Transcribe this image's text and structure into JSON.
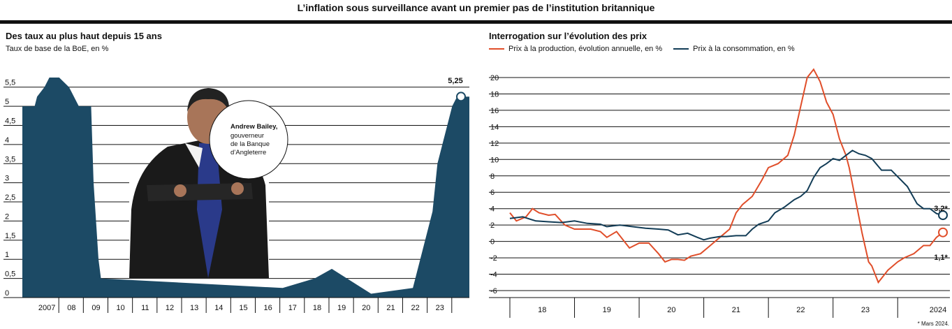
{
  "title": "L’inflation sous surveillance avant un premier pas de l’institution britannique",
  "left": {
    "title": "Des taux au plus haut depuis 15 ans",
    "subtitle": "Taux de base de la BoE, en %",
    "last_label": "5,25",
    "photo_caption_name": "Andrew Bailey,",
    "photo_caption_role": [
      "gouverneur",
      "de la Banque",
      "d’Angleterre"
    ],
    "photo_icon": "person-photo-icon"
  },
  "right": {
    "title": "Interrogation sur l’évolution des prix",
    "cons_label": "3,2*",
    "prod_label": "1,1*",
    "footnote": "* Mars 2024."
  },
  "colors": {
    "bar": "#1c4a65",
    "production": "#e04e2a",
    "consommation": "#123c56"
  },
  "chart_data": [
    {
      "type": "area",
      "title": "Des taux au plus haut depuis 15 ans",
      "ylabel": "Taux de base de la BoE, en %",
      "ylim": [
        0,
        5.75
      ],
      "yticks": [
        "0",
        "0,5",
        "1",
        "1,5",
        "2",
        "2,5",
        "3",
        "3,5",
        "4",
        "4,5",
        "5",
        "5,5"
      ],
      "xticks": [
        "2007",
        "08",
        "09",
        "10",
        "11",
        "12",
        "13",
        "14",
        "15",
        "16",
        "17",
        "18",
        "19",
        "20",
        "21",
        "22",
        "23"
      ],
      "x": [
        2006.0,
        2006.5,
        2006.6,
        2006.9,
        2007.1,
        2007.5,
        2007.9,
        2008.3,
        2008.8,
        2008.9,
        2009.1,
        2009.2,
        2016.6,
        2017.9,
        2018.6,
        2020.2,
        2021.9,
        2022.1,
        2022.3,
        2022.5,
        2022.7,
        2022.9,
        2023.1,
        2023.3,
        2023.5,
        2023.7,
        2024.2
      ],
      "values": [
        5.0,
        5.0,
        5.25,
        5.5,
        5.75,
        5.75,
        5.5,
        5.0,
        5.0,
        3.0,
        1.0,
        0.5,
        0.25,
        0.5,
        0.75,
        0.1,
        0.25,
        0.75,
        1.25,
        1.75,
        2.25,
        3.5,
        4.0,
        4.5,
        5.0,
        5.25,
        5.25
      ],
      "last_value": 5.25
    },
    {
      "type": "line",
      "title": "Interrogation sur l’évolution des prix",
      "ylim": [
        -6,
        21
      ],
      "yticks": [
        "20",
        "18",
        "16",
        "14",
        "12",
        "10",
        "8",
        "6",
        "4",
        "2",
        "0",
        "-2",
        "-4",
        "-6"
      ],
      "xticks": [
        "18",
        "19",
        "20",
        "21",
        "22",
        "23",
        "2024"
      ],
      "series": [
        {
          "name": "Prix à la production, évolution annuelle, en %",
          "x": [
            2017.5,
            2017.6,
            2017.75,
            2017.85,
            2017.95,
            2018.1,
            2018.2,
            2018.35,
            2018.5,
            2018.75,
            2018.9,
            2019.0,
            2019.15,
            2019.35,
            2019.5,
            2019.65,
            2019.8,
            2019.9,
            2020.0,
            2020.1,
            2020.2,
            2020.3,
            2020.45,
            2020.6,
            2020.75,
            2020.9,
            2021.0,
            2021.1,
            2021.25,
            2021.4,
            2021.5,
            2021.65,
            2021.8,
            2021.9,
            2022.0,
            2022.1,
            2022.2,
            2022.3,
            2022.4,
            2022.5,
            2022.6,
            2022.7,
            2022.75,
            2022.85,
            2022.95,
            2023.05,
            2023.1,
            2023.2,
            2023.35,
            2023.5,
            2023.6,
            2023.75,
            2023.9,
            2024.0,
            2024.1,
            2024.2
          ],
          "values": [
            3.5,
            2.5,
            3.0,
            4.0,
            3.5,
            3.2,
            3.3,
            2.0,
            1.5,
            1.5,
            1.2,
            0.5,
            1.2,
            -0.8,
            -0.2,
            -0.2,
            -1.5,
            -2.5,
            -2.2,
            -2.2,
            -2.3,
            -1.8,
            -1.5,
            -0.5,
            0.5,
            1.5,
            3.5,
            4.5,
            5.5,
            7.5,
            9.0,
            9.5,
            10.5,
            13.0,
            16.5,
            20.0,
            21.0,
            19.5,
            17.0,
            15.5,
            12.5,
            10.5,
            9.0,
            5.0,
            1.0,
            -2.5,
            -3.0,
            -5.0,
            -3.5,
            -2.5,
            -2.0,
            -1.5,
            -0.5,
            -0.5,
            0.5,
            1.1
          ]
        },
        {
          "name": "Prix à la consommation, en %",
          "x": [
            2017.5,
            2017.7,
            2017.9,
            2018.1,
            2018.3,
            2018.5,
            2018.7,
            2018.9,
            2019.0,
            2019.1,
            2019.2,
            2019.4,
            2019.6,
            2019.8,
            2019.95,
            2020.1,
            2020.25,
            2020.4,
            2020.5,
            2020.6,
            2020.75,
            2020.85,
            2021.0,
            2021.15,
            2021.25,
            2021.35,
            2021.5,
            2021.6,
            2021.75,
            2021.9,
            2022.0,
            2022.1,
            2022.2,
            2022.3,
            2022.4,
            2022.5,
            2022.6,
            2022.7,
            2022.8,
            2022.9,
            2023.0,
            2023.1,
            2023.25,
            2023.4,
            2023.5,
            2023.65,
            2023.8,
            2023.9,
            2024.0,
            2024.1,
            2024.2
          ],
          "values": [
            2.8,
            3.0,
            2.5,
            2.4,
            2.3,
            2.5,
            2.2,
            2.1,
            1.8,
            1.9,
            2.0,
            1.8,
            1.6,
            1.5,
            1.4,
            0.8,
            1.0,
            0.5,
            0.2,
            0.4,
            0.6,
            0.6,
            0.7,
            0.7,
            1.5,
            2.1,
            2.5,
            3.5,
            4.2,
            5.1,
            5.5,
            6.2,
            7.8,
            9.0,
            9.5,
            10.1,
            9.9,
            10.5,
            11.1,
            10.7,
            10.5,
            10.1,
            8.7,
            8.7,
            7.9,
            6.7,
            4.6,
            4.0,
            4.0,
            3.4,
            3.2
          ]
        }
      ],
      "labels": [
        {
          "series": 1,
          "value": 3.2
        },
        {
          "series": 0,
          "value": 1.1
        }
      ]
    }
  ]
}
